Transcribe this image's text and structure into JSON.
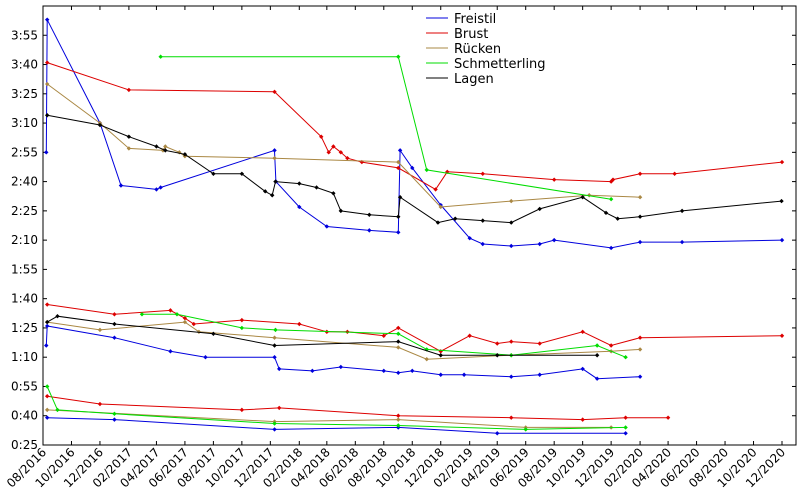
{
  "chart_data": {
    "type": "line",
    "title": "",
    "xlabel": "",
    "ylabel": "",
    "x_range": [
      "2016-08-01",
      "2020-12-31"
    ],
    "y_range_seconds": [
      25,
      250
    ],
    "x_ticks": [
      "08/2016",
      "10/2016",
      "12/2016",
      "02/2017",
      "04/2017",
      "06/2017",
      "08/2017",
      "10/2017",
      "12/2017",
      "02/2018",
      "04/2018",
      "06/2018",
      "08/2018",
      "10/2018",
      "12/2018",
      "02/2019",
      "04/2019",
      "06/2019",
      "08/2019",
      "10/2019",
      "12/2019",
      "02/2020",
      "04/2020",
      "06/2020",
      "08/2020",
      "10/2020",
      "12/2020"
    ],
    "y_ticks": [
      "0:25",
      "0:40",
      "0:55",
      "1:10",
      "1:25",
      "1:40",
      "1:55",
      "2:10",
      "2:25",
      "2:40",
      "2:55",
      "3:10",
      "3:25",
      "3:40",
      "3:55"
    ],
    "legend_position": "top-center",
    "legend": [
      {
        "name": "Freistil",
        "color": "#0000dd"
      },
      {
        "name": "Brust",
        "color": "#dd0000"
      },
      {
        "name": "Rücken",
        "color": "#aa8844"
      },
      {
        "name": "Schmetterling",
        "color": "#00dd00"
      },
      {
        "name": "Lagen",
        "color": "#000000"
      }
    ],
    "series": [
      {
        "name": "Freistil",
        "color": "#0000dd",
        "group": "200m",
        "points": [
          [
            "2016-08-08",
            175
          ],
          [
            "2016-08-10",
            243
          ],
          [
            "2016-12-01",
            190
          ],
          [
            "2017-01-15",
            158
          ],
          [
            "2017-04-01",
            156
          ],
          [
            "2017-04-10",
            157
          ],
          [
            "2017-12-10",
            176
          ],
          [
            "2017-12-13",
            160
          ],
          [
            "2018-02-01",
            147
          ],
          [
            "2018-04-01",
            137
          ],
          [
            "2018-07-01",
            135
          ],
          [
            "2018-09-01",
            134
          ],
          [
            "2018-09-05",
            176
          ],
          [
            "2018-10-01",
            167
          ],
          [
            "2018-12-01",
            148
          ],
          [
            "2019-02-01",
            131
          ],
          [
            "2019-03-01",
            128
          ],
          [
            "2019-05-01",
            127
          ],
          [
            "2019-07-01",
            128
          ],
          [
            "2019-08-01",
            130
          ],
          [
            "2019-12-01",
            126
          ],
          [
            "2020-02-01",
            129
          ],
          [
            "2020-05-01",
            129
          ],
          [
            "2020-12-01",
            130
          ]
        ]
      },
      {
        "name": "Brust",
        "color": "#dd0000",
        "group": "200m",
        "points": [
          [
            "2016-08-10",
            221
          ],
          [
            "2017-02-01",
            207
          ],
          [
            "2017-12-10",
            206
          ],
          [
            "2018-03-20",
            183
          ],
          [
            "2018-04-05",
            175
          ],
          [
            "2018-04-15",
            178
          ],
          [
            "2018-05-01",
            175
          ],
          [
            "2018-05-15",
            172
          ],
          [
            "2018-06-15",
            170
          ],
          [
            "2018-09-01",
            167
          ],
          [
            "2018-11-20",
            156
          ],
          [
            "2018-12-15",
            165
          ],
          [
            "2019-03-01",
            164
          ],
          [
            "2019-08-01",
            161
          ],
          [
            "2019-12-01",
            160
          ],
          [
            "2019-12-05",
            161
          ],
          [
            "2020-02-01",
            164
          ],
          [
            "2020-04-15",
            164
          ],
          [
            "2020-12-01",
            170
          ]
        ]
      },
      {
        "name": "Rücken",
        "color": "#aa8844",
        "group": "200m",
        "points": [
          [
            "2016-08-10",
            210
          ],
          [
            "2016-12-01",
            190
          ],
          [
            "2017-02-01",
            177
          ],
          [
            "2017-04-15",
            176
          ],
          [
            "2017-04-20",
            178
          ],
          [
            "2017-05-20",
            175
          ],
          [
            "2017-06-01",
            173
          ],
          [
            "2017-12-10",
            172
          ],
          [
            "2018-09-01",
            170
          ],
          [
            "2018-12-01",
            147
          ],
          [
            "2019-05-01",
            150
          ],
          [
            "2019-10-15",
            153
          ],
          [
            "2020-02-01",
            152
          ]
        ]
      },
      {
        "name": "Schmetterling",
        "color": "#00dd00",
        "group": "200m",
        "points": [
          [
            "2017-04-10",
            224
          ],
          [
            "2018-09-01",
            224
          ],
          [
            "2018-11-01",
            166
          ],
          [
            "2019-12-01",
            151
          ]
        ]
      },
      {
        "name": "Lagen",
        "color": "#000000",
        "group": "200m",
        "points": [
          [
            "2016-08-10",
            194
          ],
          [
            "2016-12-01",
            189
          ],
          [
            "2017-02-01",
            183
          ],
          [
            "2017-04-01",
            178
          ],
          [
            "2017-04-20",
            176
          ],
          [
            "2017-06-01",
            174
          ],
          [
            "2017-08-01",
            164
          ],
          [
            "2017-10-01",
            164
          ],
          [
            "2017-11-20",
            155
          ],
          [
            "2017-12-05",
            153
          ],
          [
            "2017-12-12",
            160
          ],
          [
            "2018-02-01",
            159
          ],
          [
            "2018-03-10",
            157
          ],
          [
            "2018-04-15",
            154
          ],
          [
            "2018-05-01",
            145
          ],
          [
            "2018-07-01",
            143
          ],
          [
            "2018-09-01",
            142
          ],
          [
            "2018-09-05",
            152
          ],
          [
            "2018-11-25",
            139
          ],
          [
            "2019-01-01",
            141
          ],
          [
            "2019-03-01",
            140
          ],
          [
            "2019-05-01",
            139
          ],
          [
            "2019-07-01",
            146
          ],
          [
            "2019-10-01",
            152
          ],
          [
            "2019-11-20",
            144
          ],
          [
            "2019-12-15",
            141
          ],
          [
            "2020-02-01",
            142
          ],
          [
            "2020-05-01",
            145
          ],
          [
            "2020-11-30",
            150
          ]
        ]
      },
      {
        "name": "Freistil",
        "color": "#0000dd",
        "group": "100m",
        "points": [
          [
            "2016-08-08",
            76
          ],
          [
            "2016-08-10",
            86
          ],
          [
            "2017-01-01",
            80
          ],
          [
            "2017-05-01",
            73
          ],
          [
            "2017-07-15",
            70
          ],
          [
            "2017-12-10",
            70
          ],
          [
            "2017-12-20",
            64
          ],
          [
            "2018-03-01",
            63
          ],
          [
            "2018-05-01",
            65
          ],
          [
            "2018-08-01",
            63
          ],
          [
            "2018-09-01",
            62
          ],
          [
            "2018-10-01",
            63
          ],
          [
            "2018-12-01",
            61
          ],
          [
            "2019-01-20",
            61
          ],
          [
            "2019-05-01",
            60
          ],
          [
            "2019-07-01",
            61
          ],
          [
            "2019-10-01",
            64
          ],
          [
            "2019-11-01",
            59
          ],
          [
            "2020-02-01",
            60
          ]
        ]
      },
      {
        "name": "Brust",
        "color": "#dd0000",
        "group": "100m",
        "points": [
          [
            "2016-08-10",
            97
          ],
          [
            "2017-01-01",
            92
          ],
          [
            "2017-05-01",
            94
          ],
          [
            "2017-06-01",
            90
          ],
          [
            "2017-06-20",
            87
          ],
          [
            "2017-10-01",
            89
          ],
          [
            "2018-02-01",
            87
          ],
          [
            "2018-04-01",
            83
          ],
          [
            "2018-05-15",
            83
          ],
          [
            "2018-08-01",
            81
          ],
          [
            "2018-09-01",
            85
          ],
          [
            "2018-12-01",
            73
          ],
          [
            "2019-02-01",
            81
          ],
          [
            "2019-04-01",
            77
          ],
          [
            "2019-05-01",
            78
          ],
          [
            "2019-07-01",
            77
          ],
          [
            "2019-10-01",
            83
          ],
          [
            "2019-12-01",
            76
          ],
          [
            "2020-02-01",
            80
          ],
          [
            "2020-12-01",
            81
          ]
        ]
      },
      {
        "name": "Rücken",
        "color": "#aa8844",
        "group": "100m",
        "points": [
          [
            "2016-08-10",
            88
          ],
          [
            "2016-12-01",
            84
          ],
          [
            "2017-06-01",
            88
          ],
          [
            "2017-07-01",
            83
          ],
          [
            "2017-12-10",
            80
          ],
          [
            "2018-09-01",
            75
          ],
          [
            "2018-11-01",
            69
          ],
          [
            "2019-05-01",
            71
          ],
          [
            "2019-12-01",
            73
          ],
          [
            "2020-02-01",
            74
          ]
        ]
      },
      {
        "name": "Schmetterling",
        "color": "#00dd00",
        "group": "100m",
        "points": [
          [
            "2017-03-01",
            92
          ],
          [
            "2017-05-15",
            92
          ],
          [
            "2017-10-01",
            85
          ],
          [
            "2017-12-12",
            84
          ],
          [
            "2018-09-01",
            82
          ],
          [
            "2018-11-01",
            74
          ],
          [
            "2019-05-01",
            71
          ],
          [
            "2019-11-01",
            76
          ],
          [
            "2020-01-01",
            70
          ]
        ]
      },
      {
        "name": "Lagen",
        "color": "#000000",
        "group": "100m",
        "points": [
          [
            "2016-08-10",
            88
          ],
          [
            "2016-09-01",
            91
          ],
          [
            "2017-01-01",
            87
          ],
          [
            "2017-08-01",
            82
          ],
          [
            "2017-12-10",
            76
          ],
          [
            "2018-09-01",
            78
          ],
          [
            "2018-12-01",
            71
          ],
          [
            "2019-04-01",
            71
          ],
          [
            "2019-11-01",
            71
          ]
        ]
      },
      {
        "name": "Freistil",
        "color": "#0000dd",
        "group": "50m",
        "points": [
          [
            "2016-08-10",
            39
          ],
          [
            "2017-01-01",
            38
          ],
          [
            "2017-12-10",
            33
          ],
          [
            "2018-09-01",
            34
          ],
          [
            "2019-04-01",
            31
          ],
          [
            "2020-01-01",
            31
          ]
        ]
      },
      {
        "name": "Brust",
        "color": "#dd0000",
        "group": "50m",
        "points": [
          [
            "2016-08-10",
            50
          ],
          [
            "2016-12-01",
            46
          ],
          [
            "2017-10-01",
            43
          ],
          [
            "2017-12-20",
            44
          ],
          [
            "2018-09-01",
            40
          ],
          [
            "2019-05-01",
            39
          ],
          [
            "2019-10-01",
            38
          ],
          [
            "2020-01-01",
            39
          ],
          [
            "2020-04-01",
            39
          ]
        ]
      },
      {
        "name": "Rücken",
        "color": "#aa8844",
        "group": "50m",
        "points": [
          [
            "2016-08-10",
            43
          ],
          [
            "2017-12-10",
            37
          ],
          [
            "2018-09-01",
            38
          ],
          [
            "2019-06-01",
            34
          ],
          [
            "2019-12-01",
            34
          ]
        ]
      },
      {
        "name": "Schmetterling",
        "color": "#00dd00",
        "group": "50m",
        "points": [
          [
            "2016-08-10",
            55
          ],
          [
            "2016-09-01",
            43
          ],
          [
            "2017-01-01",
            41
          ],
          [
            "2017-12-10",
            36
          ],
          [
            "2018-09-01",
            35
          ],
          [
            "2019-06-01",
            33
          ],
          [
            "2020-01-01",
            34
          ]
        ]
      }
    ]
  }
}
